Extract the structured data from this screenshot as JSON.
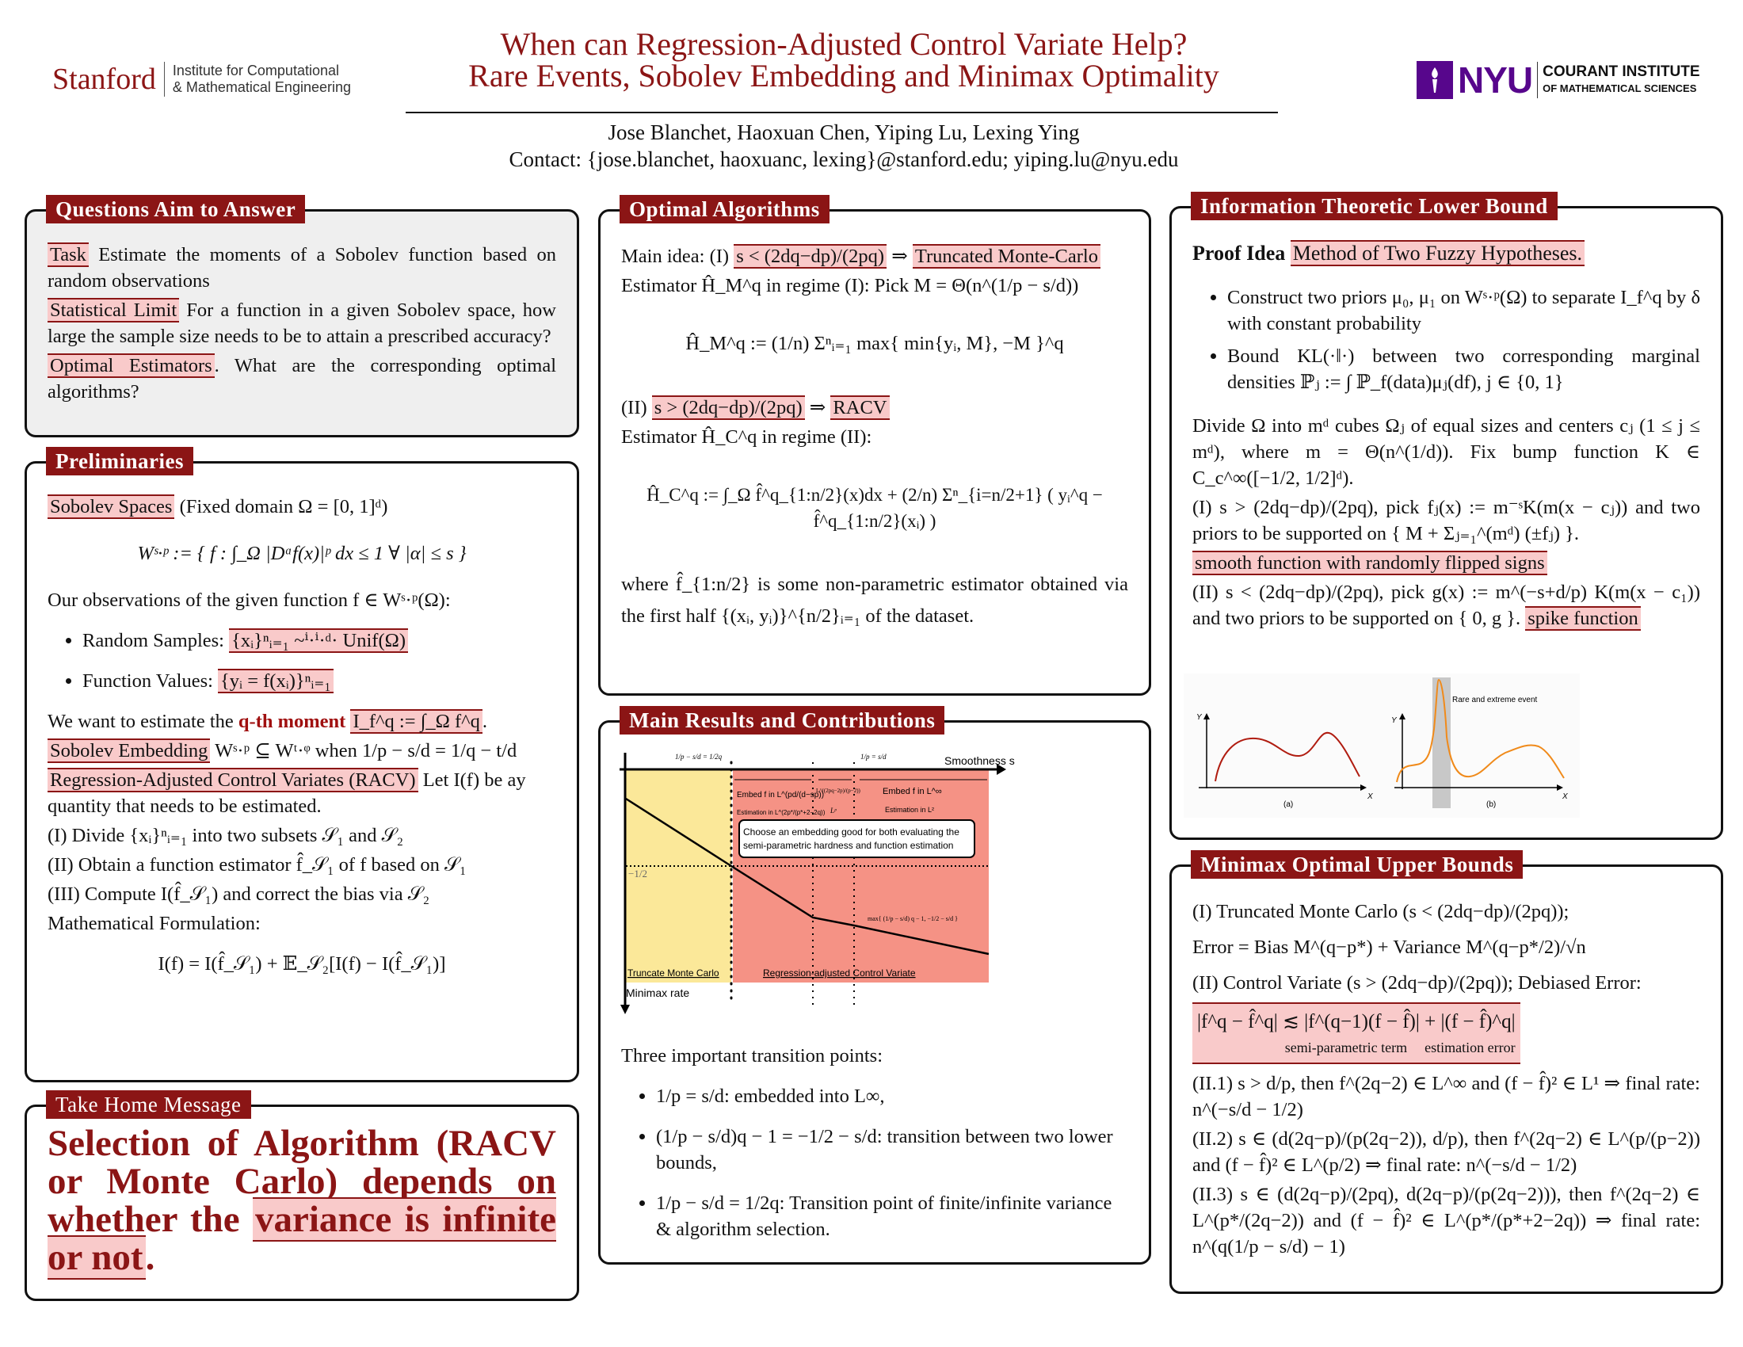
{
  "header": {
    "stanford_logo": "Stanford",
    "stanford_sub1": "Institute for Computational",
    "stanford_sub2": "& Mathematical Engineering",
    "title_line1": "When can Regression-Adjusted Control Variate Help?",
    "title_line2": "Rare Events, Sobolev Embedding and Minimax Optimality",
    "authors": "Jose Blanchet, Haoxuan Chen, Yiping Lu, Lexing Ying",
    "contact": "Contact: {jose.blanchet, haoxuanc, lexing}@stanford.edu; yiping.lu@nyu.edu",
    "nyu_logo": "NYU",
    "courant_line1": "COURANT INSTITUTE",
    "courant_line2": "OF MATHEMATICAL SCIENCES",
    "colors": {
      "accent": "#8b1515",
      "nyu_purple": "#57068c"
    }
  },
  "questions": {
    "title": "Questions Aim to Answer",
    "items": [
      {
        "tag": "Task",
        "text": " Estimate the moments of a Sobolev function based on random observations"
      },
      {
        "tag": "Statistical Limit",
        "text": " For a function in a given Sobolev space, how large the sample size needs to be to attain a prescribed accuracy?"
      },
      {
        "tag": "Optimal Estimators",
        "text": ". What are the corresponding optimal algorithms?"
      }
    ]
  },
  "preliminaries": {
    "title": "Preliminaries",
    "sobolev_tag": "Sobolev Spaces",
    "sobolev_text": " (Fixed domain Ω = [0, 1]ᵈ)",
    "sobolev_formula": "Wˢ·ᵖ := { f : ∫_Ω |Dᵅf(x)|ᵖ dx ≤ 1 ∀ |α| ≤ s }",
    "observations": "Our observations of the given function f ∈ Wˢ·ᵖ(Ω):",
    "bullets": [
      {
        "label": "Random Samples: ",
        "math": "{xᵢ}ⁿᵢ₌₁ ~ⁱ·ⁱ·ᵈ· Unif(Ω)"
      },
      {
        "label": "Function Values: ",
        "math": "{yᵢ = f(xᵢ)}ⁿᵢ₌₁"
      }
    ],
    "want_text": "We want to estimate the ",
    "want_moment": "q-th moment",
    "want_math": "I_f^q := ∫_Ω f^q",
    "want_end": ".",
    "embedding_tag": "Sobolev Embedding",
    "embedding_text": " Wˢ·ᵖ ⊆ Wᵗ·ᵠ when 1/p − s/d = 1/q − t/d",
    "racv_tag": "Regression-Adjusted Control Variates (RACV)",
    "racv_text": " Let I(f) be ay quantity that needs to be estimated.",
    "steps": [
      "(I) Divide {xᵢ}ⁿᵢ₌₁ into two subsets 𝒮₁ and 𝒮₂",
      "(II) Obtain a function estimator f̂_𝒮₁ of f based on 𝒮₁",
      "(III) Compute I(f̂_𝒮₁) and correct the bias via 𝒮₂"
    ],
    "formulation_label": "Mathematical Formulation:",
    "formulation": "I(f) = I(f̂_𝒮₁) + 𝔼_𝒮₂[I(f) − I(f̂_𝒮₁)]"
  },
  "take_home": {
    "title": "Take Home Message",
    "text": "Selection of Algorithm (RACV or Monte Carlo) depends on whether the ",
    "highlight": "variance is infinite or not",
    "end": "."
  },
  "optimal": {
    "title": "Optimal Algorithms",
    "main_idea": "Main idea: (I) ",
    "cond1": "s < (2dq−dp)/(2pq)",
    "arrow": " ⇒ ",
    "alg1": "Truncated Monte-Carlo",
    "estimator1": "Estimator Ĥ_M^q in regime (I): Pick M = Θ(n^(1/p − s/d))",
    "formula1": "Ĥ_M^q := (1/n) Σⁿᵢ₌₁ max{ min{yᵢ, M}, −M }^q",
    "regime2": "(II) ",
    "cond2": "s > (2dq−dp)/(2pq)",
    "alg2": "RACV",
    "estimator2": "Estimator Ĥ_C^q in regime (II):",
    "formula2": "Ĥ_C^q := ∫_Ω f̂^q_{1:n/2}(x)dx + (2/n) Σⁿ_{i=n/2+1} ( yᵢ^q − f̂^q_{1:n/2}(xᵢ) )",
    "where": "where f̂_{1:n/2} is some non-parametric estimator obtained via the first half {(xᵢ, yᵢ)}^{n/2}ᵢ₌₁ of the dataset."
  },
  "main_results": {
    "title": "Main Results and Contributions",
    "chart": {
      "x_axis_label": "Smoothness s",
      "y_axis_label": "Minimax rate",
      "tick_left": "1/p − s/d = 1/2q",
      "tick_right": "1/p = s/d",
      "level_label": "−1/2",
      "region1_label": "Truncate Monte Carlo",
      "region2_label": "Regression-adjusted Control Variate",
      "embed1": "Embed f in L^(pd/(d−sp))",
      "estim1": "Estimation in L^(2p*/(p*+2−2q))",
      "embed2": "L^((2pq−2p)/(p−2))",
      "estim2": "Lᵖ",
      "embed3": "Embed f in L^∞",
      "estim3": "Estimation in L²",
      "callout": [
        "Choose an embedding good for both evaluating the",
        "semi-parametric hardness and function estimation"
      ],
      "curve_label": "max{ (1/p − s/d) q − 1, −1/2 − s/d }",
      "colors": {
        "monte_carlo": "#fbe899",
        "racv": "#f59285"
      }
    },
    "transitions_title": "Three important transition points:",
    "transitions": [
      "1/p = s/d: embedded into L∞,",
      "(1/p − s/d)q − 1 = −1/2 − s/d: transition between two lower bounds,",
      "1/p − s/d = 1/2q: Transition point of finite/infinite variance & algorithm selection."
    ]
  },
  "lower_bound": {
    "title": "Information Theoretic Lower Bound",
    "proof_label": "Proof Idea ",
    "proof_method": "Method of Two Fuzzy Hypotheses.",
    "bullets": [
      "Construct two priors μ₀, μ₁ on Wˢ·ᵖ(Ω) to separate I_f^q by δ with constant probability",
      "Bound KL(·‖·) between two corresponding marginal densities ℙⱼ := ∫ ℙ_f(data)μⱼ(df), j ∈ {0, 1}"
    ],
    "divide": "Divide Ω into mᵈ cubes Ωⱼ of equal sizes and centers cⱼ (1 ≤ j ≤ mᵈ), where m = Θ(n^(1/d)). Fix bump function K ∈ C_c^∞([−1/2, 1/2]ᵈ).",
    "case1": "(I) s > (2dq−dp)/(2pq), pick fⱼ(x) := m⁻ˢK(m(x − cⱼ)) and two priors to be supported on { M + Σⱼ₌₁^(mᵈ) (±fⱼ) }.",
    "case1_tag": "smooth function with randomly flipped signs",
    "case2": "(II) s < (2dq−dp)/(2pq), pick g(x) := m^(−s+d/p) K(m(x − c₁)) and two priors to be supported on { 0, g }. ",
    "case2_tag": "spike function",
    "figure": {
      "y_label": "Y",
      "x_label": "X",
      "caption_a": "(a)",
      "caption_b": "(b)",
      "annotation": "Rare and extreme event",
      "colors": {
        "smooth": "#b01c10",
        "spike": "#f08a1a",
        "band": "#c8c8c8"
      }
    }
  },
  "minimax": {
    "title": "Minimax Optimal Upper Bounds",
    "line1": "(I) Truncated Monte Carlo (s < (2dq−dp)/(2pq));",
    "line2": "Error = Bias M^(q−p*) + Variance M^(q−p*/2)/√n",
    "line3": "(II) Control Variate (s > (2dq−dp)/(2pq)); Debiased Error:",
    "error_formula": "|f^q − f̂^q| ≲ |f^(q−1)(f − f̂)| + |(f − f̂)^q|",
    "term1": "semi-parametric term",
    "term2": "estimation error",
    "cases": [
      "(II.1) s > d/p, then f^(2q−2) ∈ L^∞ and (f − f̂)² ∈ L¹ ⇒ final rate: n^(−s/d − 1/2)",
      "(II.2) s ∈ (d(2q−p)/(p(2q−2)), d/p), then f^(2q−2) ∈ L^(p/(p−2)) and (f − f̂)² ∈ L^(p/2) ⇒ final rate: n^(−s/d − 1/2)",
      "(II.3) s ∈ (d(2q−p)/(2pq), d(2q−p)/(p(2q−2))), then f^(2q−2) ∈ L^(p*/(2q−2)) and (f − f̂)² ∈ L^(p*/(p*+2−2q)) ⇒ final rate: n^(q(1/p − s/d) − 1)"
    ]
  }
}
